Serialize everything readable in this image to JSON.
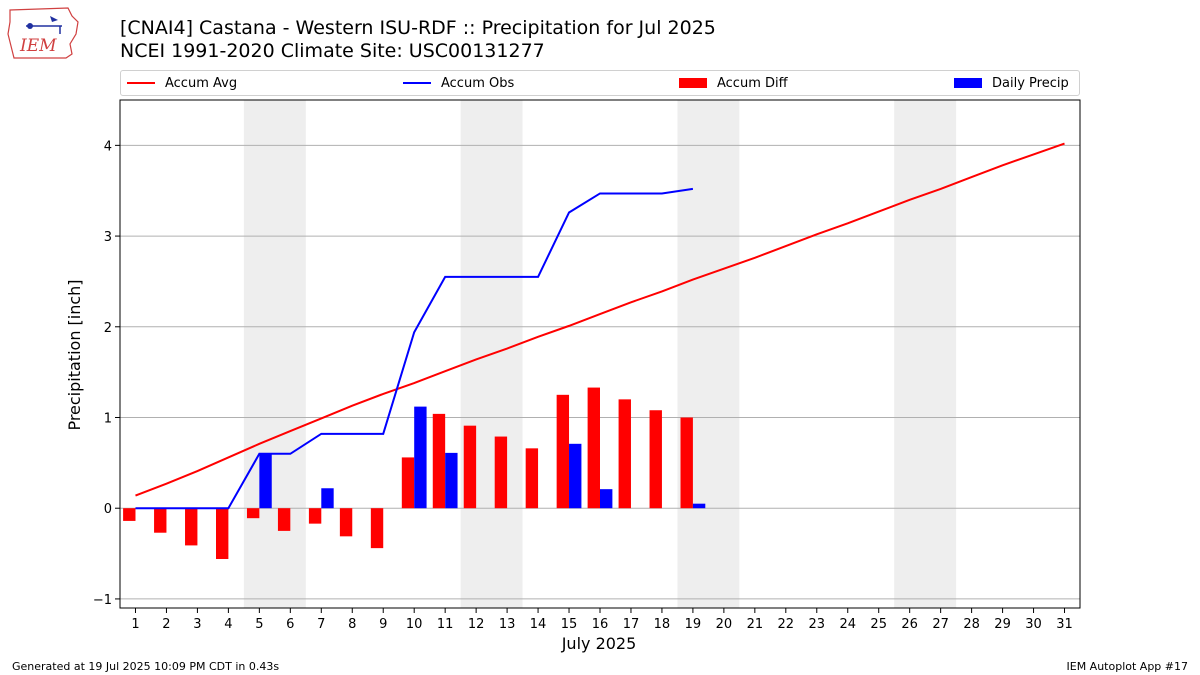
{
  "header": {
    "logo_text": "IEM",
    "title_line1": "[CNAI4] Castana - Western ISU-RDF :: Precipitation for Jul 2025",
    "title_line2": "NCEI 1991-2020 Climate Site: USC00131277"
  },
  "footer": {
    "generated": "Generated at 19 Jul 2025 10:09 PM CDT in 0.43s",
    "app": "IEM Autoplot App #17"
  },
  "colors": {
    "accum_avg": "#ff0000",
    "accum_obs": "#0000ff",
    "accum_diff": "#ff0000",
    "daily_precip": "#0000ff",
    "weekend_shade": "#eeeeee",
    "grid": "#b0b0b0"
  },
  "chart_data": {
    "type": "bar",
    "xlabel": "July 2025",
    "ylabel": "Precipitation [inch]",
    "xlim": [
      0.5,
      31.5
    ],
    "ylim": [
      -1.1,
      4.5
    ],
    "yticks": [
      -1,
      0,
      1,
      2,
      3,
      4
    ],
    "grid": "horizontal",
    "legend_position": "top",
    "days": [
      1,
      2,
      3,
      4,
      5,
      6,
      7,
      8,
      9,
      10,
      11,
      12,
      13,
      14,
      15,
      16,
      17,
      18,
      19,
      20,
      21,
      22,
      23,
      24,
      25,
      26,
      27,
      28,
      29,
      30,
      31
    ],
    "weekend_days": [
      [
        5,
        6
      ],
      [
        12,
        13
      ],
      [
        19,
        20
      ],
      [
        26,
        27
      ]
    ],
    "series": [
      {
        "name": "Accum Avg",
        "kind": "line",
        "x": [
          1,
          2,
          3,
          4,
          5,
          6,
          7,
          8,
          9,
          10,
          11,
          12,
          13,
          14,
          15,
          16,
          17,
          18,
          19,
          20,
          21,
          22,
          23,
          24,
          25,
          26,
          27,
          28,
          29,
          30,
          31
        ],
        "values": [
          0.14,
          0.27,
          0.41,
          0.56,
          0.71,
          0.85,
          0.99,
          1.13,
          1.26,
          1.38,
          1.51,
          1.64,
          1.76,
          1.89,
          2.01,
          2.14,
          2.27,
          2.39,
          2.52,
          2.64,
          2.76,
          2.89,
          3.02,
          3.14,
          3.27,
          3.4,
          3.52,
          3.65,
          3.78,
          3.9,
          4.02
        ]
      },
      {
        "name": "Accum Obs",
        "kind": "line",
        "x": [
          1,
          2,
          3,
          4,
          5,
          6,
          7,
          8,
          9,
          10,
          11,
          12,
          13,
          14,
          15,
          16,
          17,
          18,
          19
        ],
        "values": [
          0.0,
          0.0,
          0.0,
          0.0,
          0.6,
          0.6,
          0.82,
          0.82,
          0.82,
          1.94,
          2.55,
          2.55,
          2.55,
          2.55,
          3.26,
          3.47,
          3.47,
          3.47,
          3.52
        ]
      },
      {
        "name": "Accum Diff",
        "kind": "bar",
        "x": [
          1,
          2,
          3,
          4,
          5,
          6,
          7,
          8,
          9,
          10,
          11,
          12,
          13,
          14,
          15,
          16,
          17,
          18,
          19
        ],
        "values": [
          -0.14,
          -0.27,
          -0.41,
          -0.56,
          -0.11,
          -0.25,
          -0.17,
          -0.31,
          -0.44,
          0.56,
          1.04,
          0.91,
          0.79,
          0.66,
          1.25,
          1.33,
          1.2,
          1.08,
          1.0
        ]
      },
      {
        "name": "Daily Precip",
        "kind": "bar",
        "x": [
          1,
          2,
          3,
          4,
          5,
          6,
          7,
          8,
          9,
          10,
          11,
          12,
          13,
          14,
          15,
          16,
          17,
          18,
          19
        ],
        "values": [
          0,
          0,
          0,
          0,
          0.6,
          0,
          0.22,
          0,
          0,
          1.12,
          0.61,
          0,
          0,
          0,
          0.71,
          0.21,
          0,
          0,
          0.05
        ]
      }
    ]
  }
}
